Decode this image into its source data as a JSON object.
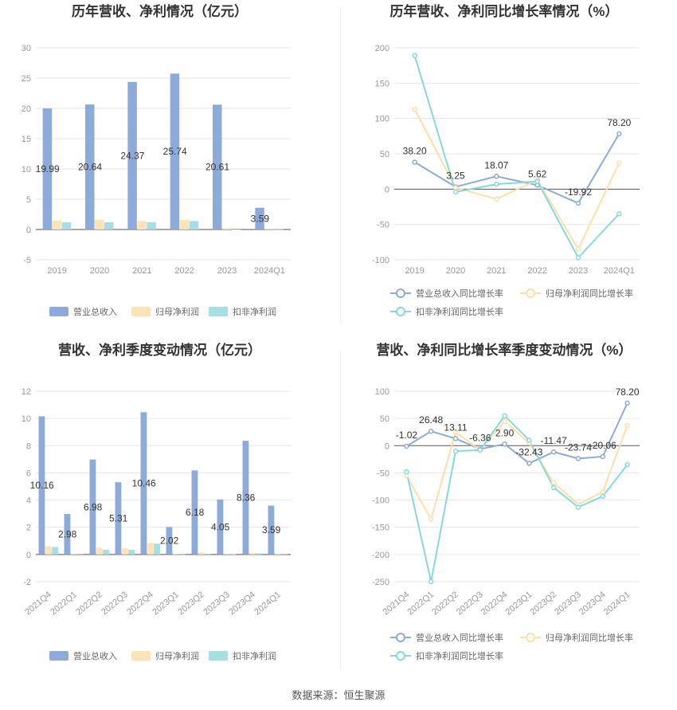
{
  "source": "数据来源：恒生聚源",
  "colors": {
    "revenue": "#8eaad8",
    "net_profit": "#fde3b6",
    "deducted_profit": "#a5dfe3",
    "line_revenue": "#8eaad8",
    "line_net": "#fddfa8",
    "line_deducted": "#86d8dd"
  },
  "chart_data": [
    {
      "id": "annual-bar",
      "type": "bar",
      "title": "历年营收、净利情况（亿元）",
      "categories": [
        "2019",
        "2020",
        "2021",
        "2022",
        "2023",
        "2024Q1"
      ],
      "ylim": [
        -5,
        30
      ],
      "yticks": [
        -5,
        0,
        5,
        10,
        15,
        20,
        25,
        30
      ],
      "grid": true,
      "legend": "bottom",
      "series": [
        {
          "name": "营业总收入",
          "values": [
            19.99,
            20.64,
            24.37,
            25.74,
            20.61,
            3.59
          ],
          "labels": [
            "19.99",
            "20.64",
            "24.37",
            "25.74",
            "20.61",
            "3.59"
          ]
        },
        {
          "name": "归母净利润",
          "values": [
            1.5,
            1.6,
            1.4,
            1.6,
            0.2,
            0.05
          ]
        },
        {
          "name": "扣非净利润",
          "values": [
            1.2,
            1.2,
            1.2,
            1.4,
            0.0,
            0.03
          ]
        }
      ]
    },
    {
      "id": "annual-line",
      "type": "line",
      "title": "历年营收、净利同比增长率情况（%）",
      "categories": [
        "2019",
        "2020",
        "2021",
        "2022",
        "2023",
        "2024Q1"
      ],
      "ylim": [
        -100,
        200
      ],
      "yticks": [
        -100,
        -50,
        0,
        50,
        100,
        150,
        200
      ],
      "grid": true,
      "legend": "bottom",
      "series": [
        {
          "name": "营业总收入同比增长率",
          "values": [
            38.2,
            3.25,
            18.07,
            5.62,
            -19.92,
            78.2
          ],
          "labels": [
            "38.20",
            "3.25",
            "18.07",
            "5.62",
            "-19.92",
            "78.20"
          ]
        },
        {
          "name": "归母净利润同比增长率",
          "values": [
            113,
            2,
            -14,
            13,
            -85,
            37
          ]
        },
        {
          "name": "扣非净利润同比增长率",
          "values": [
            189,
            -4,
            7,
            11,
            -97,
            -35
          ]
        }
      ]
    },
    {
      "id": "quarter-bar",
      "type": "bar",
      "title": "营收、净利季度变动情况（亿元）",
      "categories": [
        "2021Q4",
        "2022Q1",
        "2022Q2",
        "2022Q3",
        "2022Q4",
        "2023Q1",
        "2023Q2",
        "2023Q3",
        "2023Q4",
        "2024Q1"
      ],
      "ylim": [
        -2,
        12
      ],
      "yticks": [
        -2,
        0,
        2,
        4,
        6,
        8,
        10,
        12
      ],
      "grid": true,
      "legend": "bottom",
      "series": [
        {
          "name": "营业总收入",
          "values": [
            10.16,
            2.98,
            6.98,
            5.31,
            10.46,
            2.02,
            6.18,
            4.05,
            8.36,
            3.59
          ],
          "labels": [
            "10.16",
            "2.98",
            "6.98",
            "5.31",
            "10.46",
            "2.02",
            "6.18",
            "4.05",
            "8.36",
            "3.59"
          ]
        },
        {
          "name": "归母净利润",
          "values": [
            0.6,
            0.05,
            0.5,
            0.45,
            0.85,
            0.02,
            0.15,
            0.05,
            0.12,
            0.05
          ]
        },
        {
          "name": "扣非净利润",
          "values": [
            0.55,
            0.03,
            0.35,
            0.35,
            0.8,
            0.01,
            0.03,
            0.02,
            0.08,
            0.03
          ]
        }
      ]
    },
    {
      "id": "quarter-line",
      "type": "line",
      "title": "营收、净利同比增长率季度变动情况（%）",
      "categories": [
        "2021Q4",
        "2022Q1",
        "2022Q2",
        "2022Q3",
        "2022Q4",
        "2023Q1",
        "2023Q2",
        "2023Q3",
        "2023Q4",
        "2024Q1"
      ],
      "ylim": [
        -250,
        100
      ],
      "yticks": [
        -250,
        -200,
        -150,
        -100,
        -50,
        0,
        50,
        100
      ],
      "grid": true,
      "legend": "bottom",
      "series": [
        {
          "name": "营业总收入同比增长率",
          "values": [
            -1.02,
            26.48,
            13.11,
            -6.36,
            2.9,
            -32.43,
            -11.47,
            -23.74,
            -20.06,
            78.2
          ],
          "labels": [
            "-1.02",
            "26.48",
            "13.11",
            "-6.36",
            "2.90",
            "-32.43",
            "-11.47",
            "-23.74",
            "-20.06",
            "78.20"
          ]
        },
        {
          "name": "归母净利润同比增长率",
          "values": [
            -55,
            -135,
            25,
            -8,
            45,
            5,
            -68,
            -108,
            -85,
            37
          ]
        },
        {
          "name": "扣非净利润同比增长率",
          "values": [
            -48,
            -250,
            -10,
            -8,
            55,
            10,
            -77,
            -113,
            -93,
            -35
          ]
        }
      ]
    }
  ]
}
